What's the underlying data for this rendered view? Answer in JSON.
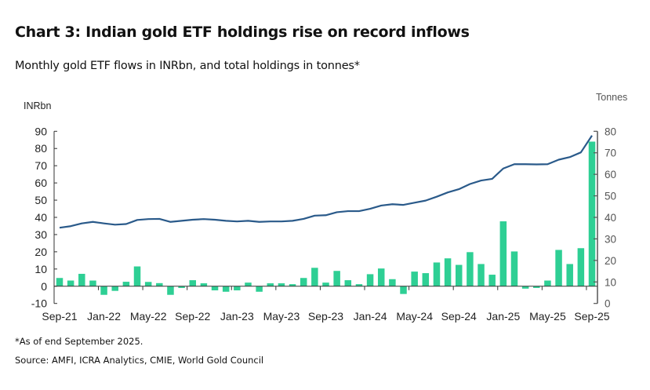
{
  "header": {
    "title": "Chart 3: Indian gold ETF holdings rise on record inflows",
    "subtitle": "Monthly gold ETF flows in INRbn, and total holdings in tonnes*"
  },
  "footer": {
    "footnote": "*As of end September 2025.",
    "source": "Source: AMFI, ICRA Analytics, CMIE, World Gold Council"
  },
  "colors": {
    "bars": "#2ecf94",
    "line": "#2a5a8a",
    "axis": "#333333"
  },
  "chart_data": {
    "type": "bar+line",
    "title": "Chart 3: Indian gold ETF holdings rise on record inflows",
    "subtitle": "Monthly gold ETF flows in INRbn, and total holdings in tonnes*",
    "categories": [
      "Sep-21",
      "Oct-21",
      "Nov-21",
      "Dec-21",
      "Jan-22",
      "Feb-22",
      "Mar-22",
      "Apr-22",
      "May-22",
      "Jun-22",
      "Jul-22",
      "Aug-22",
      "Sep-22",
      "Oct-22",
      "Nov-22",
      "Dec-22",
      "Jan-23",
      "Feb-23",
      "Mar-23",
      "Apr-23",
      "May-23",
      "Jun-23",
      "Jul-23",
      "Aug-23",
      "Sep-23",
      "Oct-23",
      "Nov-23",
      "Dec-23",
      "Jan-24",
      "Feb-24",
      "Mar-24",
      "Apr-24",
      "May-24",
      "Jun-24",
      "Jul-24",
      "Aug-24",
      "Sep-24",
      "Oct-24",
      "Nov-24",
      "Dec-24",
      "Jan-25",
      "Feb-25",
      "Mar-25",
      "Apr-25",
      "May-25",
      "Jun-25",
      "Jul-25",
      "Aug-25",
      "Sep-25"
    ],
    "x_tick_labels": [
      "Sep-21",
      "Jan-22",
      "May-22",
      "Sep-22",
      "Jan-23",
      "May-23",
      "Sep-23",
      "Jan-24",
      "May-24",
      "Sep-24",
      "Jan-25",
      "May-25",
      "Sep-25"
    ],
    "series": [
      {
        "name": "Monthly gold ETF flows (INRbn)",
        "type": "bar",
        "axis": "left",
        "values": [
          4.8,
          3.3,
          7.2,
          3.3,
          -5.0,
          -2.7,
          2.6,
          11.5,
          2.5,
          1.8,
          -5.0,
          -1.0,
          3.5,
          1.7,
          -2.4,
          -3.2,
          -2.4,
          2.1,
          -3.2,
          1.7,
          1.7,
          1.2,
          4.8,
          10.7,
          2.1,
          8.9,
          3.5,
          1.2,
          7.0,
          10.3,
          4.1,
          -4.5,
          8.5,
          7.6,
          13.8,
          16.2,
          12.4,
          19.8,
          12.9,
          6.7,
          37.7,
          20.2,
          -1.4,
          -1.0,
          3.3,
          21.1,
          12.9,
          22.1,
          84.0
        ]
      },
      {
        "name": "Total holdings (tonnes)",
        "type": "line",
        "axis": "right",
        "values": [
          35.2,
          35.9,
          37.2,
          37.9,
          37.2,
          36.6,
          36.9,
          38.8,
          39.2,
          39.3,
          37.9,
          38.4,
          38.9,
          39.2,
          38.9,
          38.4,
          38.1,
          38.4,
          37.9,
          38.1,
          38.1,
          38.4,
          39.3,
          40.8,
          41.0,
          42.4,
          42.9,
          42.9,
          44.0,
          45.5,
          46.1,
          45.8,
          46.8,
          47.8,
          49.6,
          51.6,
          53.1,
          55.5,
          57.1,
          57.9,
          62.7,
          64.7,
          64.7,
          64.6,
          64.7,
          66.8,
          68.0,
          70.2,
          78.0
        ]
      }
    ],
    "y_left": {
      "label": "INRbn",
      "ylim": [
        -10,
        90
      ],
      "ticks": [
        90,
        80,
        70,
        60,
        50,
        40,
        30,
        20,
        10,
        0,
        -10
      ]
    },
    "y_right": {
      "label": "Tonnes",
      "ylim": [
        0,
        80
      ],
      "ticks": [
        80,
        70,
        60,
        50,
        40,
        30,
        20,
        10,
        0
      ]
    },
    "grid": false,
    "legend": "none"
  }
}
